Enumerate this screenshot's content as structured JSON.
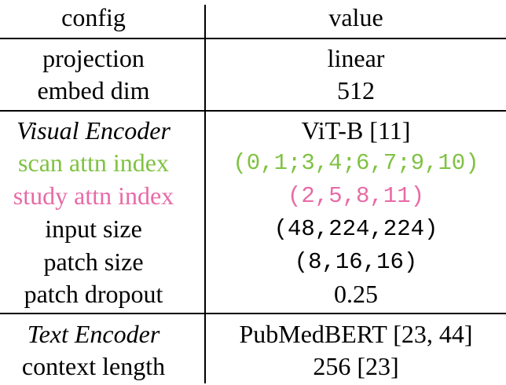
{
  "colors": {
    "scan": "#7fc241",
    "study": "#e86aa6"
  },
  "header": {
    "config": "config",
    "value": "value"
  },
  "rows": [
    {
      "config": "projection",
      "value": "linear"
    },
    {
      "config": "embed dim",
      "value": "512"
    },
    {
      "config": "Visual Encoder",
      "value": "ViT-B [11]"
    },
    {
      "config": "scan attn index",
      "value": "(0,1;3,4;6,7;9,10)"
    },
    {
      "config": "study attn index",
      "value": "(2,5,8,11)"
    },
    {
      "config": "input size",
      "value": "(48,224,224)"
    },
    {
      "config": "patch size",
      "value": "(8,16,16)"
    },
    {
      "config": "patch dropout",
      "value": "0.25"
    },
    {
      "config": "Text Encoder",
      "value": "PubMedBERT [23, 44]"
    },
    {
      "config": "context length",
      "value": "256 [23]"
    }
  ]
}
